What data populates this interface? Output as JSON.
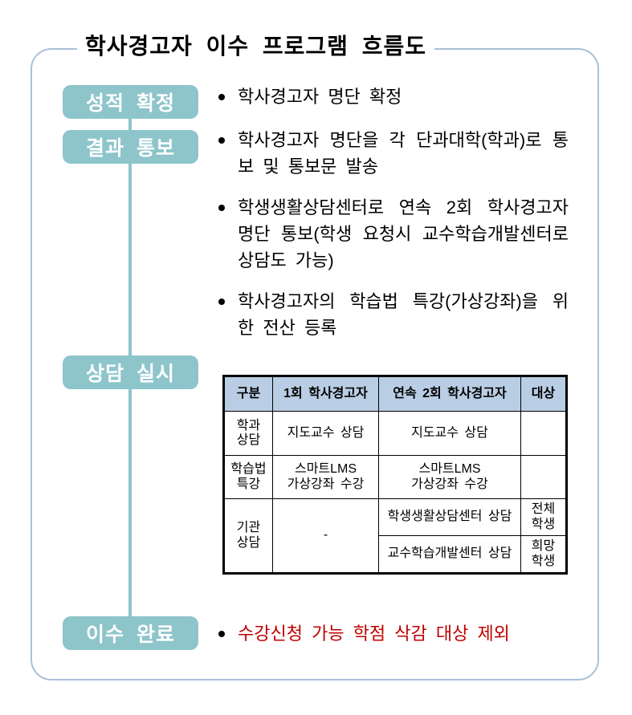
{
  "theme": {
    "frame_border": "#a9c0da",
    "stage_bg": "#8dc5cb",
    "stage_text": "#ffffff",
    "connector": "#8dc5cb",
    "table_header_bg": "#b9cde4",
    "table_border": "#000000",
    "highlight": "#c00000",
    "text": "#000000"
  },
  "header": {
    "title": "학사경고자 이수 프로그램 흐름도"
  },
  "stages": [
    {
      "label": "성적 확정"
    },
    {
      "label": "결과 통보"
    },
    {
      "label": "상담 실시"
    },
    {
      "label": "이수 완료"
    }
  ],
  "notes": [
    "학사경고자 명단 확정",
    "학사경고자 명단을 각 단과대학(학과)로 통보 및 통보문 발송",
    "학생생활상담센터로 연속 2회 학사경고자 명단 통보(학생 요청시 교수학습개발센터로 상담도 가능)",
    "학사경고자의 학습법 특강(가상강좌)을 위한 전산 등록"
  ],
  "final_note": "수강신청 가능 학점 삭감 대상 제외",
  "table": {
    "headers": [
      "구분",
      "1회 학사경고자",
      "연속 2회 학사경고자",
      "대상"
    ],
    "rows": [
      {
        "category": "학과\n상담",
        "first": "지도교수 상담",
        "second": "지도교수 상담",
        "target": ""
      },
      {
        "category": "학습법\n특강",
        "first": "스마트LMS\n가상강좌 수강",
        "second": "스마트LMS\n가상강좌 수강",
        "target": ""
      },
      {
        "category": "기관\n상담",
        "first": "-",
        "second": "학생생활상담센터 상담",
        "target": "전체\n학생"
      },
      {
        "second": "교수학습개발센터 상담",
        "target": "희망\n학생"
      }
    ]
  }
}
